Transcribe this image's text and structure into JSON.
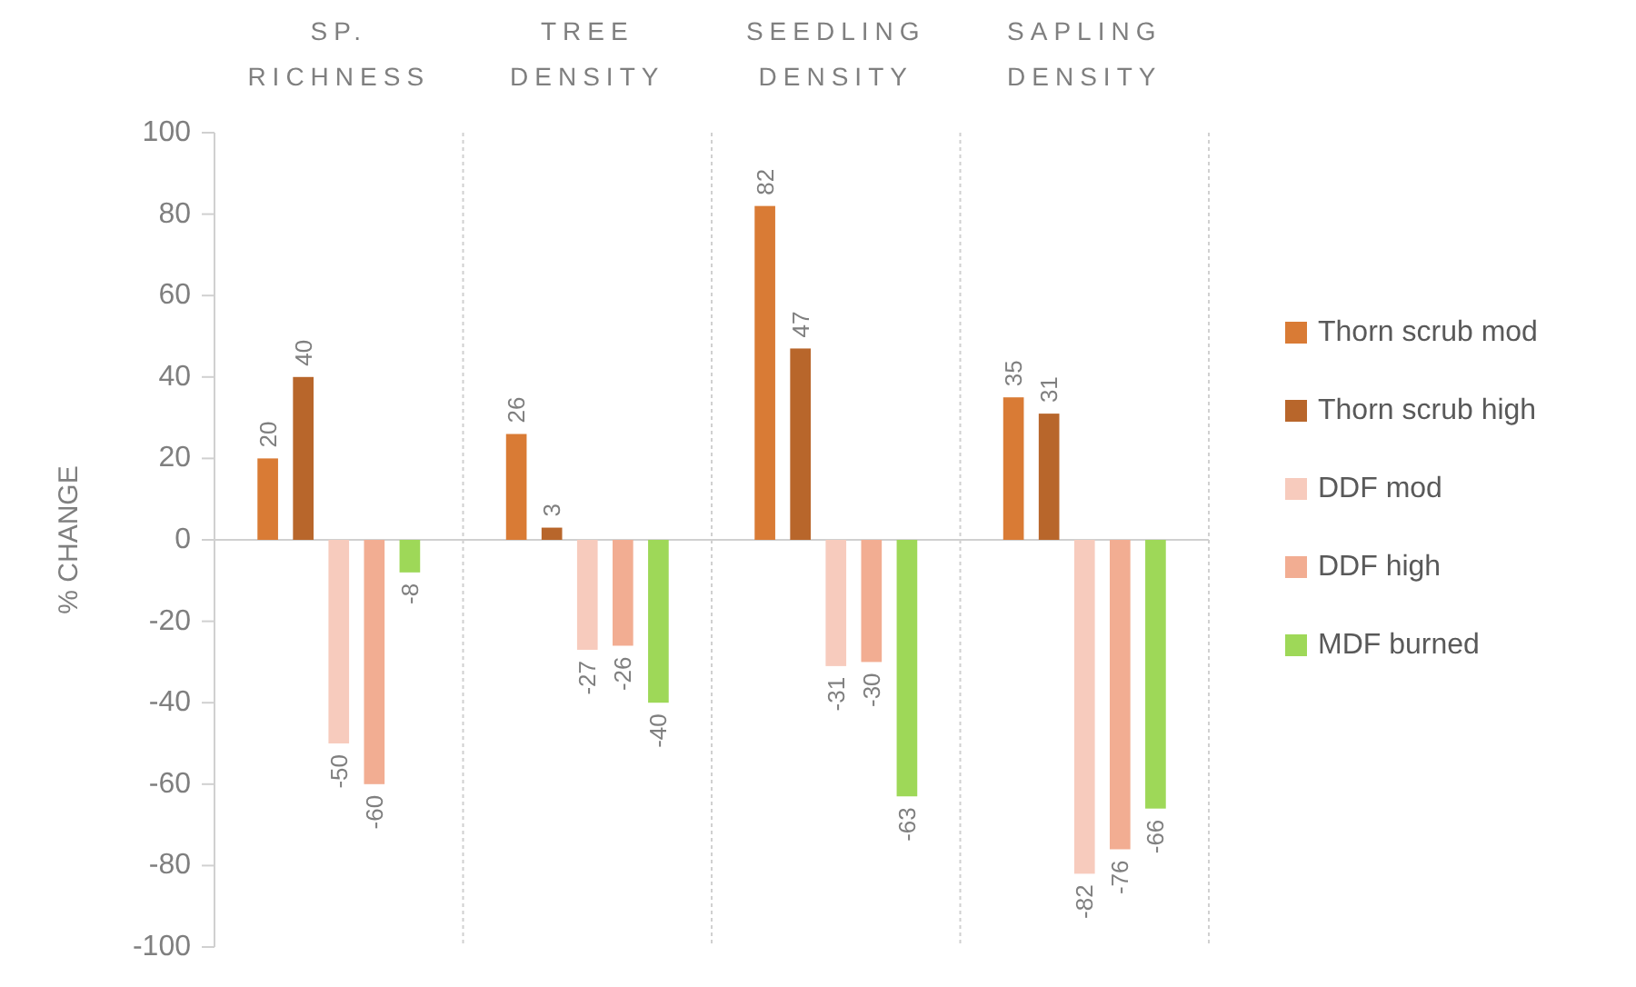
{
  "chart_data": {
    "type": "bar",
    "ylabel": "% CHANGE",
    "categories": [
      "SP. RICHNESS",
      "TREE DENSITY",
      "SEEDLING DENSITY",
      "SAPLING DENSITY"
    ],
    "series": [
      {
        "name": "Thorn scrub mod",
        "color": "#d97b35",
        "values": [
          20,
          26,
          82,
          35
        ]
      },
      {
        "name": "Thorn scrub high",
        "color": "#b8662b",
        "values": [
          40,
          3,
          47,
          31
        ]
      },
      {
        "name": "DDF mod",
        "color": "#f7cbbd",
        "values": [
          -50,
          -27,
          -31,
          -82
        ]
      },
      {
        "name": "DDF high",
        "color": "#f2ad92",
        "values": [
          -60,
          -26,
          -30,
          -76
        ]
      },
      {
        "name": "MDF burned",
        "color": "#9ed858",
        "values": [
          -8,
          -40,
          -63,
          -66
        ]
      }
    ],
    "ylim": [
      -100,
      100
    ],
    "yticks": [
      -100,
      -80,
      -60,
      -40,
      -20,
      0,
      20,
      40,
      60,
      80,
      100
    ],
    "grid": "x",
    "legend": "right",
    "data_labels": true
  }
}
